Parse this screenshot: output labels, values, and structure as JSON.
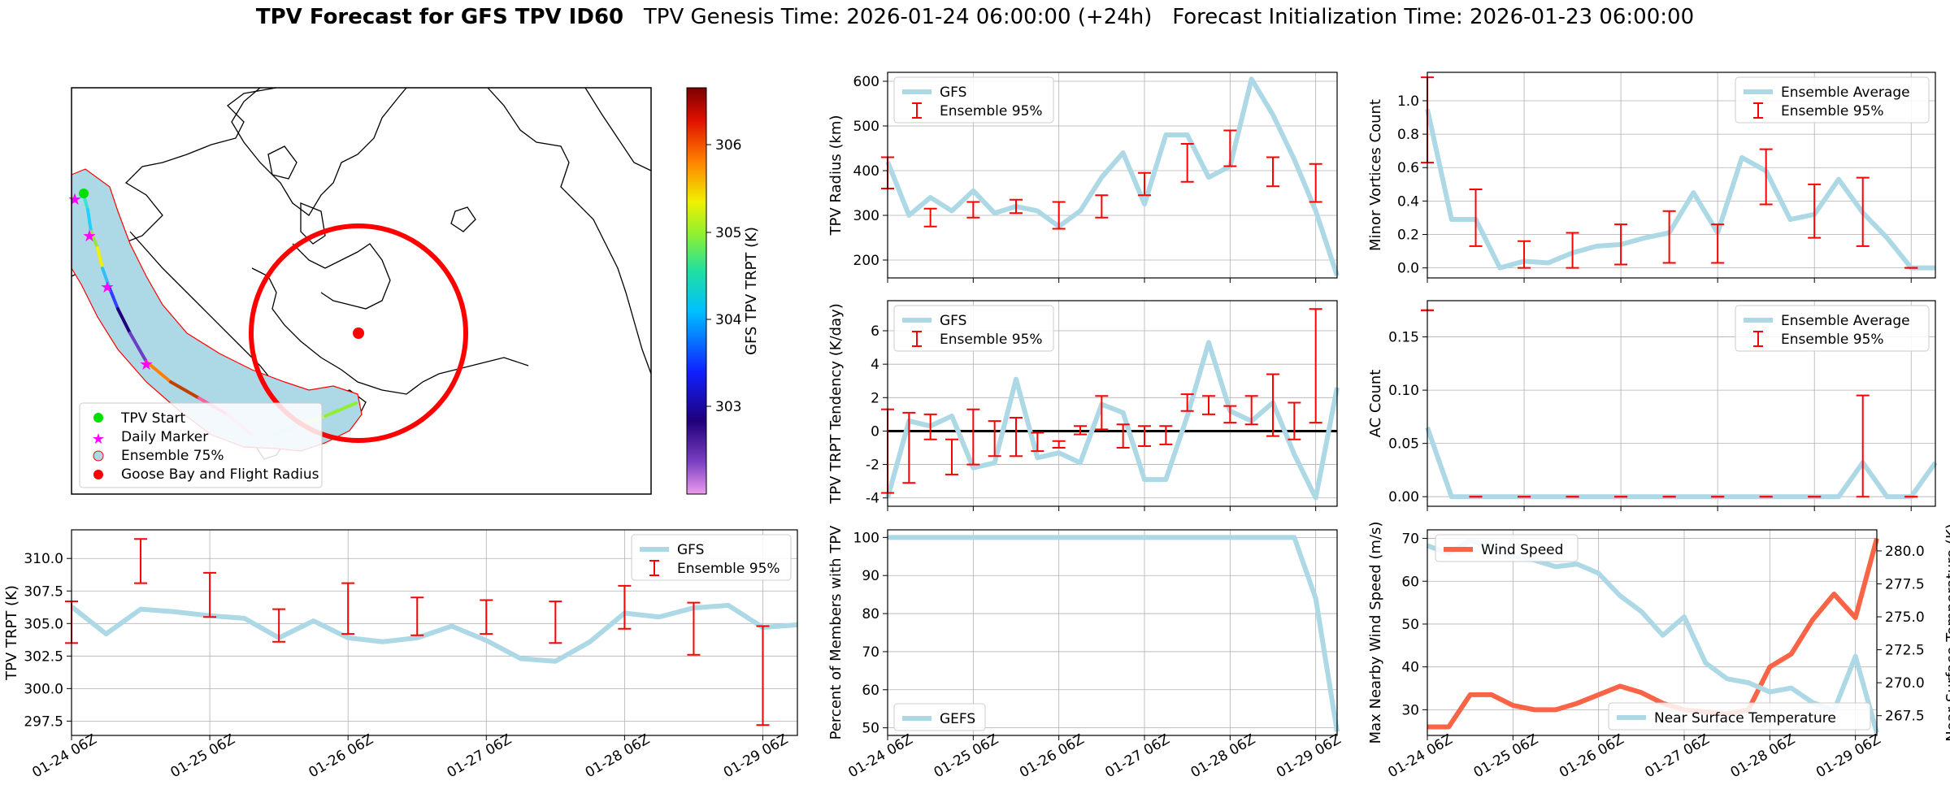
{
  "title": {
    "bold": "TPV Forecast for GFS TPV ID60",
    "genesis": "TPV Genesis Time: 2026-01-24 06:00:00 (+24h)",
    "init": "Forecast Initialization Time: 2026-01-23 06:00:00"
  },
  "colors": {
    "model": "#add8e6",
    "error": "#ff0000",
    "wind": "#fa6446",
    "temp_axis": "#4169e1",
    "grid": "#b0b0b0"
  },
  "time_ticks": [
    "01-24 06Z",
    "01-25 06Z",
    "01-26 06Z",
    "01-27 06Z",
    "01-28 06Z",
    "01-29 06Z"
  ],
  "map": {
    "colorbar_label": "GFS TPV TRPT (K)",
    "colorbar_ticks": [
      "303",
      "304",
      "305",
      "306"
    ],
    "legend": [
      "TPV Start",
      "Daily Marker",
      "Ensemble 75%",
      "Goose Bay and Flight Radius"
    ]
  },
  "chart_data": [
    {
      "id": "trpt",
      "type": "line",
      "ylabel": "TPV TRPT (K)",
      "ylim": [
        296.4,
        312.2
      ],
      "yticks": [
        297.5,
        300.0,
        302.5,
        305.0,
        307.5,
        310.0
      ],
      "legend": [
        "GFS",
        "Ensemble 95%"
      ],
      "series": [
        {
          "name": "GFS",
          "x": [
            0,
            0.25,
            0.5,
            0.75,
            1,
            1.25,
            1.5,
            1.75,
            2,
            2.25,
            2.5,
            2.75,
            3,
            3.25,
            3.5,
            3.75,
            4,
            4.25,
            4.5,
            4.75,
            5,
            5.25
          ],
          "values": [
            306.3,
            304.2,
            306.1,
            305.9,
            305.6,
            305.4,
            303.9,
            305.2,
            303.9,
            303.6,
            303.9,
            304.8,
            303.7,
            302.3,
            302.1,
            303.6,
            305.8,
            305.5,
            306.2,
            306.4,
            304.7,
            304.9
          ]
        }
      ],
      "errorbars": {
        "x": [
          0,
          0.5,
          1,
          1.5,
          2,
          2.5,
          3,
          3.5,
          4,
          4.5,
          5
        ],
        "low": [
          303.5,
          308.1,
          305.5,
          303.6,
          304.2,
          304.1,
          304.2,
          303.5,
          304.6,
          302.6,
          297.2
        ],
        "high": [
          306.7,
          311.5,
          308.9,
          306.1,
          308.1,
          307.0,
          306.8,
          306.7,
          307.9,
          306.6,
          304.8
        ]
      }
    },
    {
      "id": "radius",
      "type": "line",
      "ylabel": "TPV Radius (km)",
      "ylim": [
        160,
        620
      ],
      "yticks": [
        200,
        300,
        400,
        500,
        600
      ],
      "legend": [
        "GFS",
        "Ensemble 95%"
      ],
      "series": [
        {
          "name": "GFS",
          "x": [
            0,
            0.25,
            0.5,
            0.75,
            1,
            1.25,
            1.5,
            1.75,
            2,
            2.25,
            2.5,
            2.75,
            3,
            3.25,
            3.5,
            3.75,
            4,
            4.25,
            4.5,
            4.75,
            5,
            5.25
          ],
          "values": [
            420,
            300,
            340,
            310,
            355,
            305,
            320,
            310,
            275,
            310,
            385,
            440,
            325,
            480,
            480,
            385,
            410,
            605,
            525,
            425,
            310,
            165
          ]
        }
      ],
      "errorbars": {
        "x": [
          0,
          0.5,
          1,
          1.5,
          2,
          2.5,
          3,
          3.5,
          4,
          4.5,
          5
        ],
        "low": [
          360,
          275,
          295,
          305,
          270,
          295,
          345,
          375,
          410,
          365,
          330
        ],
        "high": [
          430,
          315,
          330,
          335,
          330,
          345,
          395,
          460,
          490,
          430,
          415
        ]
      }
    },
    {
      "id": "minor",
      "type": "line",
      "ylabel": "Minor Vortices Count",
      "ylim": [
        -0.06,
        1.17
      ],
      "yticks": [
        0.0,
        0.2,
        0.4,
        0.6,
        0.8,
        1.0
      ],
      "legend": [
        "Ensemble Average",
        "Ensemble 95%"
      ],
      "series": [
        {
          "name": "Ensemble Average",
          "x": [
            0,
            0.25,
            0.5,
            0.75,
            1,
            1.25,
            1.5,
            1.75,
            2,
            2.25,
            2.5,
            2.75,
            3,
            3.25,
            3.5,
            3.75,
            4,
            4.25,
            4.5,
            4.75,
            5,
            5.25
          ],
          "values": [
            0.95,
            0.29,
            0.29,
            0.0,
            0.04,
            0.03,
            0.09,
            0.13,
            0.14,
            0.18,
            0.21,
            0.45,
            0.21,
            0.66,
            0.58,
            0.29,
            0.32,
            0.53,
            0.33,
            0.18,
            0.0,
            0.0
          ]
        }
      ],
      "errorbars": {
        "x": [
          0,
          0.5,
          1,
          1.5,
          2,
          2.5,
          3,
          3.5,
          4,
          4.5,
          5
        ],
        "low": [
          0.63,
          0.13,
          0.0,
          0.0,
          0.02,
          0.03,
          0.03,
          0.38,
          0.18,
          0.13,
          0.0
        ],
        "high": [
          1.14,
          0.47,
          0.16,
          0.21,
          0.26,
          0.34,
          0.26,
          0.71,
          0.5,
          0.54,
          0.0
        ]
      }
    },
    {
      "id": "tendency",
      "type": "line",
      "ylabel": "TPV TRPT Tendency (K/day)",
      "ylim": [
        -4.5,
        7.8
      ],
      "yticks": [
        -4,
        -2,
        0,
        2,
        4,
        6
      ],
      "legend": [
        "GFS",
        "Ensemble 95%"
      ],
      "series": [
        {
          "name": "GFS",
          "x": [
            0,
            0.25,
            0.5,
            0.75,
            1,
            1.25,
            1.5,
            1.75,
            2,
            2.25,
            2.5,
            2.75,
            3,
            3.25,
            3.5,
            3.75,
            4,
            4.25,
            4.5,
            4.75,
            5,
            5.25
          ],
          "values": [
            -4.0,
            0.6,
            0.3,
            0.9,
            -2.2,
            -1.9,
            3.1,
            -1.6,
            -1.3,
            -1.9,
            1.6,
            1.1,
            -2.9,
            -2.9,
            0.9,
            5.3,
            1.2,
            0.6,
            1.7,
            -1.4,
            -4.0,
            2.6
          ]
        }
      ],
      "errorbars": {
        "x": [
          0,
          0.25,
          0.5,
          0.75,
          1,
          1.25,
          1.5,
          1.75,
          2,
          2.25,
          2.5,
          2.75,
          3,
          3.25,
          3.5,
          3.75,
          4,
          4.25,
          4.5,
          4.75,
          5
        ],
        "low": [
          -3.7,
          -3.1,
          -0.5,
          -2.6,
          -2.0,
          -1.5,
          -1.5,
          -1.2,
          -1.0,
          -0.2,
          0.1,
          -1.0,
          -0.9,
          -0.8,
          1.2,
          1.0,
          0.5,
          0.4,
          -0.3,
          -0.5,
          0.5
        ],
        "high": [
          1.3,
          1.1,
          1.0,
          -0.5,
          1.3,
          0.6,
          0.8,
          -0.1,
          -0.6,
          0.3,
          2.1,
          0.4,
          0.3,
          0.3,
          2.2,
          2.1,
          1.5,
          2.1,
          3.4,
          1.7,
          7.3
        ]
      },
      "zero_line": true
    },
    {
      "id": "ac",
      "type": "line",
      "ylabel": "AC Count",
      "ylim": [
        -0.009,
        0.184
      ],
      "yticks": [
        0.0,
        0.05,
        0.1,
        0.15
      ],
      "legend": [
        "Ensemble Average",
        "Ensemble 95%"
      ],
      "series": [
        {
          "name": "Ensemble Average",
          "x": [
            0,
            0.25,
            0.5,
            0.75,
            1,
            1.25,
            1.5,
            1.75,
            2,
            2.25,
            2.5,
            2.75,
            3,
            3.25,
            3.5,
            3.75,
            4,
            4.25,
            4.5,
            4.75,
            5,
            5.25
          ],
          "values": [
            0.065,
            0,
            0,
            0,
            0,
            0,
            0,
            0,
            0,
            0,
            0,
            0,
            0,
            0,
            0,
            0,
            0,
            0,
            0.032,
            0,
            0,
            0.032
          ]
        }
      ],
      "errorbars": {
        "x": [
          0,
          0.5,
          1,
          1.5,
          2,
          2.5,
          3,
          3.5,
          4,
          4.5,
          5
        ],
        "low": [
          0.175,
          0,
          0,
          0,
          0,
          0,
          0,
          0,
          0,
          0,
          0
        ],
        "high": [
          0.175,
          0,
          0,
          0,
          0,
          0,
          0,
          0,
          0,
          0.095,
          0
        ]
      }
    },
    {
      "id": "percent",
      "type": "line",
      "ylabel": "Percent of Members with TPV",
      "ylim": [
        48,
        102
      ],
      "yticks": [
        50,
        60,
        70,
        80,
        90,
        100
      ],
      "legend": [
        "GEFS"
      ],
      "series": [
        {
          "name": "GEFS",
          "x": [
            0,
            0.25,
            0.5,
            0.75,
            1,
            1.25,
            1.5,
            1.75,
            2,
            2.25,
            2.5,
            2.75,
            3,
            3.25,
            3.5,
            3.75,
            4,
            4.25,
            4.5,
            4.75,
            5,
            5.25
          ],
          "values": [
            100,
            100,
            100,
            100,
            100,
            100,
            100,
            100,
            100,
            100,
            100,
            100,
            100,
            100,
            100,
            100,
            100,
            100,
            100,
            100,
            84,
            49
          ]
        }
      ]
    },
    {
      "id": "wind_temp",
      "type": "line",
      "ylabel": "Max Nearby Wind Speed (m/s)",
      "ylabel_right": "Near Surface Temperature (K)",
      "ylim": [
        24,
        72
      ],
      "yticks": [
        30,
        40,
        50,
        60,
        70
      ],
      "ylim_right": [
        266.0,
        281.6
      ],
      "yticks_right": [
        267.5,
        270.0,
        272.5,
        275.0,
        277.5,
        280.0
      ],
      "legend": [
        "Wind Speed",
        "Near Surface Temperature"
      ],
      "series": [
        {
          "name": "Wind Speed",
          "x": [
            0,
            0.25,
            0.5,
            0.75,
            1,
            1.25,
            1.5,
            1.75,
            2,
            2.25,
            2.5,
            2.75,
            3,
            3.25,
            3.5,
            3.75,
            4,
            4.25,
            4.5,
            4.75,
            5,
            5.25
          ],
          "values": [
            26,
            26,
            33.5,
            33.5,
            31,
            30,
            30,
            31.5,
            33.5,
            35.5,
            34,
            31.5,
            30,
            29.5,
            29,
            30,
            40,
            43,
            51,
            57,
            51.5,
            70
          ]
        },
        {
          "name": "Near Surface Temperature",
          "x": [
            0,
            0.25,
            0.5,
            0.75,
            1,
            1.25,
            1.5,
            1.75,
            2,
            2.25,
            2.5,
            2.75,
            3,
            3.25,
            3.5,
            3.75,
            4,
            4.25,
            4.5,
            4.75,
            5,
            5.25
          ],
          "values": [
            280.4,
            279.8,
            280.8,
            280.3,
            279.6,
            279.3,
            278.8,
            279.0,
            278.3,
            276.6,
            275.4,
            273.6,
            275.0,
            271.5,
            270.3,
            270.0,
            269.3,
            269.6,
            268.5,
            267.9,
            272.0,
            266.2
          ]
        }
      ]
    }
  ]
}
